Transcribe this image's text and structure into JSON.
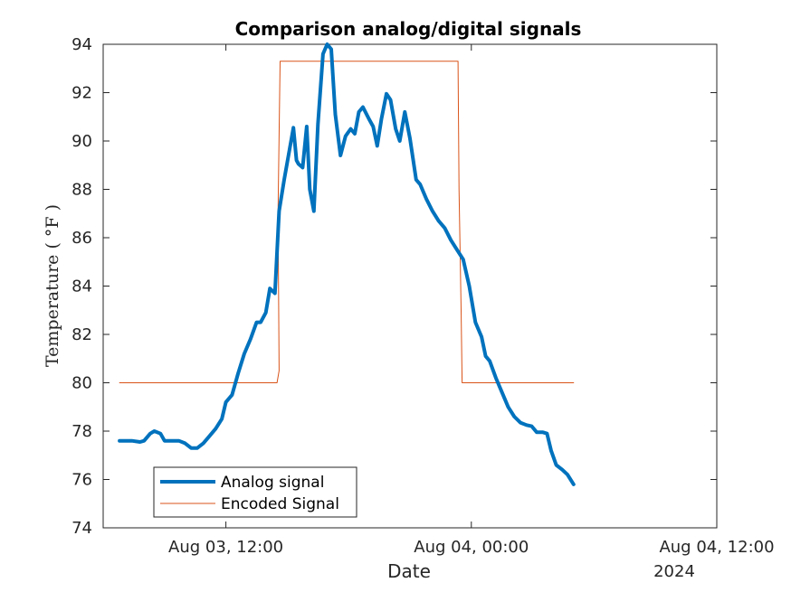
{
  "chart_data": {
    "type": "line",
    "title": "Comparison analog/digital signals",
    "xlabel": "Date",
    "ylabel": "Temperature ( °F )",
    "x_unit": "hours from Aug 03 00:00, 2024",
    "xlim": [
      6,
      36
    ],
    "ylim": [
      74,
      94
    ],
    "yticks": [
      74,
      76,
      78,
      80,
      82,
      84,
      86,
      88,
      90,
      92,
      94
    ],
    "xticks": [
      {
        "x": 12,
        "label": "Aug 03, 12:00"
      },
      {
        "x": 24,
        "label": "Aug 04, 00:00"
      },
      {
        "x": 36,
        "label": "Aug 04, 12:00"
      }
    ],
    "x_secondary_label": "2024",
    "grid": false,
    "legend_position": "bottom-left",
    "series": [
      {
        "name": "Analog signal",
        "color": "#0072BD",
        "line_width": 4,
        "points": [
          [
            6.8,
            77.6
          ],
          [
            7.2,
            77.6
          ],
          [
            7.4,
            77.6
          ],
          [
            7.8,
            77.55
          ],
          [
            8.0,
            77.6
          ],
          [
            8.3,
            77.9
          ],
          [
            8.5,
            78.0
          ],
          [
            8.8,
            77.9
          ],
          [
            9.0,
            77.6
          ],
          [
            9.3,
            77.6
          ],
          [
            9.7,
            77.6
          ],
          [
            10.0,
            77.5
          ],
          [
            10.3,
            77.3
          ],
          [
            10.6,
            77.3
          ],
          [
            10.9,
            77.5
          ],
          [
            11.2,
            77.8
          ],
          [
            11.5,
            78.1
          ],
          [
            11.8,
            78.5
          ],
          [
            12.0,
            79.2
          ],
          [
            12.3,
            79.5
          ],
          [
            12.6,
            80.4
          ],
          [
            12.9,
            81.2
          ],
          [
            13.2,
            81.8
          ],
          [
            13.5,
            82.5
          ],
          [
            13.7,
            82.5
          ],
          [
            13.95,
            82.9
          ],
          [
            14.15,
            83.9
          ],
          [
            14.4,
            83.7
          ],
          [
            14.6,
            87.1
          ],
          [
            14.85,
            88.4
          ],
          [
            15.1,
            89.6
          ],
          [
            15.3,
            90.55
          ],
          [
            15.45,
            89.2
          ],
          [
            15.55,
            89.05
          ],
          [
            15.75,
            88.9
          ],
          [
            15.95,
            90.6
          ],
          [
            16.1,
            88.0
          ],
          [
            16.3,
            87.1
          ],
          [
            16.5,
            90.7
          ],
          [
            16.75,
            93.6
          ],
          [
            16.95,
            94.0
          ],
          [
            17.15,
            93.8
          ],
          [
            17.35,
            91.1
          ],
          [
            17.6,
            89.4
          ],
          [
            17.85,
            90.2
          ],
          [
            18.1,
            90.5
          ],
          [
            18.3,
            90.3
          ],
          [
            18.5,
            91.2
          ],
          [
            18.7,
            91.4
          ],
          [
            19.0,
            90.9
          ],
          [
            19.2,
            90.6
          ],
          [
            19.4,
            89.8
          ],
          [
            19.6,
            90.9
          ],
          [
            19.85,
            91.95
          ],
          [
            20.05,
            91.7
          ],
          [
            20.3,
            90.5
          ],
          [
            20.5,
            90.0
          ],
          [
            20.75,
            91.2
          ],
          [
            21.0,
            90.1
          ],
          [
            21.3,
            88.4
          ],
          [
            21.5,
            88.2
          ],
          [
            21.8,
            87.6
          ],
          [
            22.1,
            87.1
          ],
          [
            22.4,
            86.7
          ],
          [
            22.7,
            86.4
          ],
          [
            23.0,
            85.9
          ],
          [
            23.3,
            85.5
          ],
          [
            23.6,
            85.1
          ],
          [
            23.9,
            84.0
          ],
          [
            24.2,
            82.5
          ],
          [
            24.5,
            81.9
          ],
          [
            24.7,
            81.1
          ],
          [
            24.9,
            80.9
          ],
          [
            25.2,
            80.2
          ],
          [
            25.5,
            79.6
          ],
          [
            25.8,
            79.0
          ],
          [
            26.1,
            78.6
          ],
          [
            26.4,
            78.35
          ],
          [
            26.7,
            78.25
          ],
          [
            26.95,
            78.2
          ],
          [
            27.2,
            77.95
          ],
          [
            27.5,
            77.95
          ],
          [
            27.7,
            77.9
          ],
          [
            27.9,
            77.2
          ],
          [
            28.15,
            76.6
          ],
          [
            28.45,
            76.4
          ],
          [
            28.7,
            76.2
          ],
          [
            29.0,
            75.8
          ]
        ]
      },
      {
        "name": "Encoded Signal",
        "color": "#D95319",
        "line_width": 1,
        "points": [
          [
            6.8,
            80.0
          ],
          [
            14.5,
            80.0
          ],
          [
            14.6,
            80.5
          ],
          [
            14.55,
            87.0
          ],
          [
            14.65,
            93.3
          ],
          [
            23.35,
            93.3
          ],
          [
            23.4,
            88.0
          ],
          [
            23.5,
            83.0
          ],
          [
            23.55,
            80.0
          ],
          [
            29.0,
            80.0
          ]
        ]
      }
    ]
  }
}
